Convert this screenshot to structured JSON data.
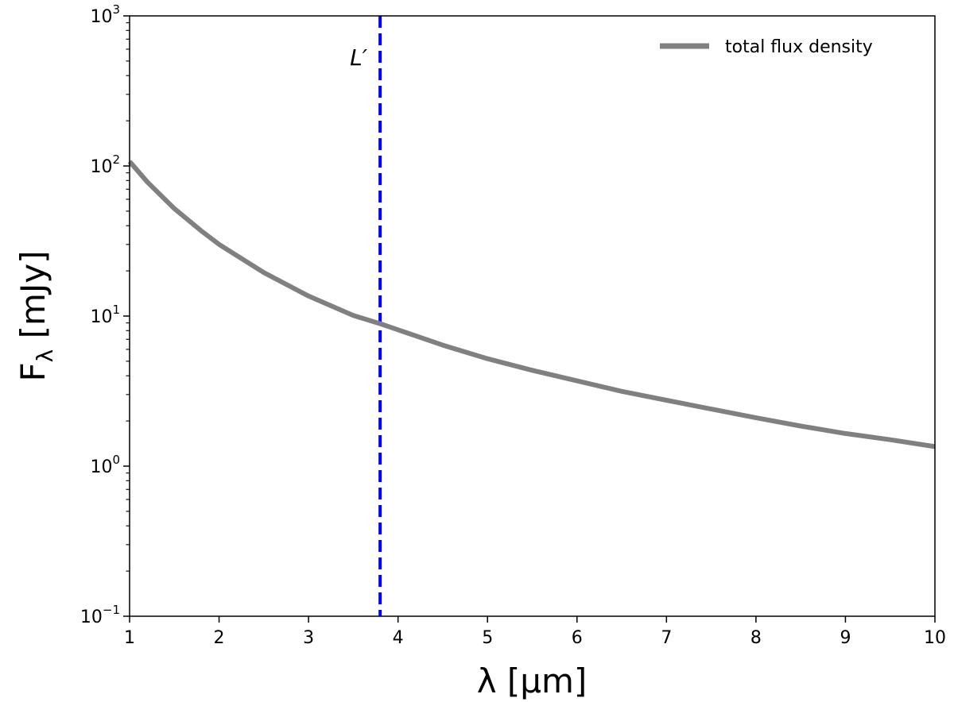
{
  "chart_data": {
    "type": "line",
    "title": "",
    "xlabel": "λ [μm]",
    "ylabel": "F_λ [mJy]",
    "xlim": [
      1,
      10
    ],
    "ylim": [
      0.1,
      1000
    ],
    "yscale": "log",
    "x_ticks": [
      1,
      2,
      3,
      4,
      5,
      6,
      7,
      8,
      9,
      10
    ],
    "y_ticks": [
      {
        "value": 0.1,
        "base": "10",
        "exp": "−1"
      },
      {
        "value": 1,
        "base": "10",
        "exp": "0"
      },
      {
        "value": 10,
        "base": "10",
        "exp": "1"
      },
      {
        "value": 100,
        "base": "10",
        "exp": "2"
      },
      {
        "value": 1000,
        "base": "10",
        "exp": "3"
      }
    ],
    "grid": false,
    "legend_position": "top-right",
    "series": [
      {
        "name": "total flux density",
        "color": "#808080",
        "x": [
          1.0,
          1.2,
          1.5,
          1.8,
          2.0,
          2.5,
          3.0,
          3.5,
          3.8,
          4.0,
          4.5,
          5.0,
          5.5,
          6.0,
          6.5,
          7.0,
          7.5,
          8.0,
          8.5,
          9.0,
          9.5,
          10.0
        ],
        "y": [
          107,
          78,
          52,
          37,
          30,
          19.5,
          13.6,
          10.1,
          8.9,
          8.1,
          6.4,
          5.2,
          4.35,
          3.7,
          3.15,
          2.75,
          2.4,
          2.1,
          1.85,
          1.65,
          1.5,
          1.35
        ]
      }
    ],
    "vlines": [
      {
        "x": 3.8,
        "label": "L′",
        "color": "#0000ff",
        "style": "dashed"
      }
    ]
  }
}
